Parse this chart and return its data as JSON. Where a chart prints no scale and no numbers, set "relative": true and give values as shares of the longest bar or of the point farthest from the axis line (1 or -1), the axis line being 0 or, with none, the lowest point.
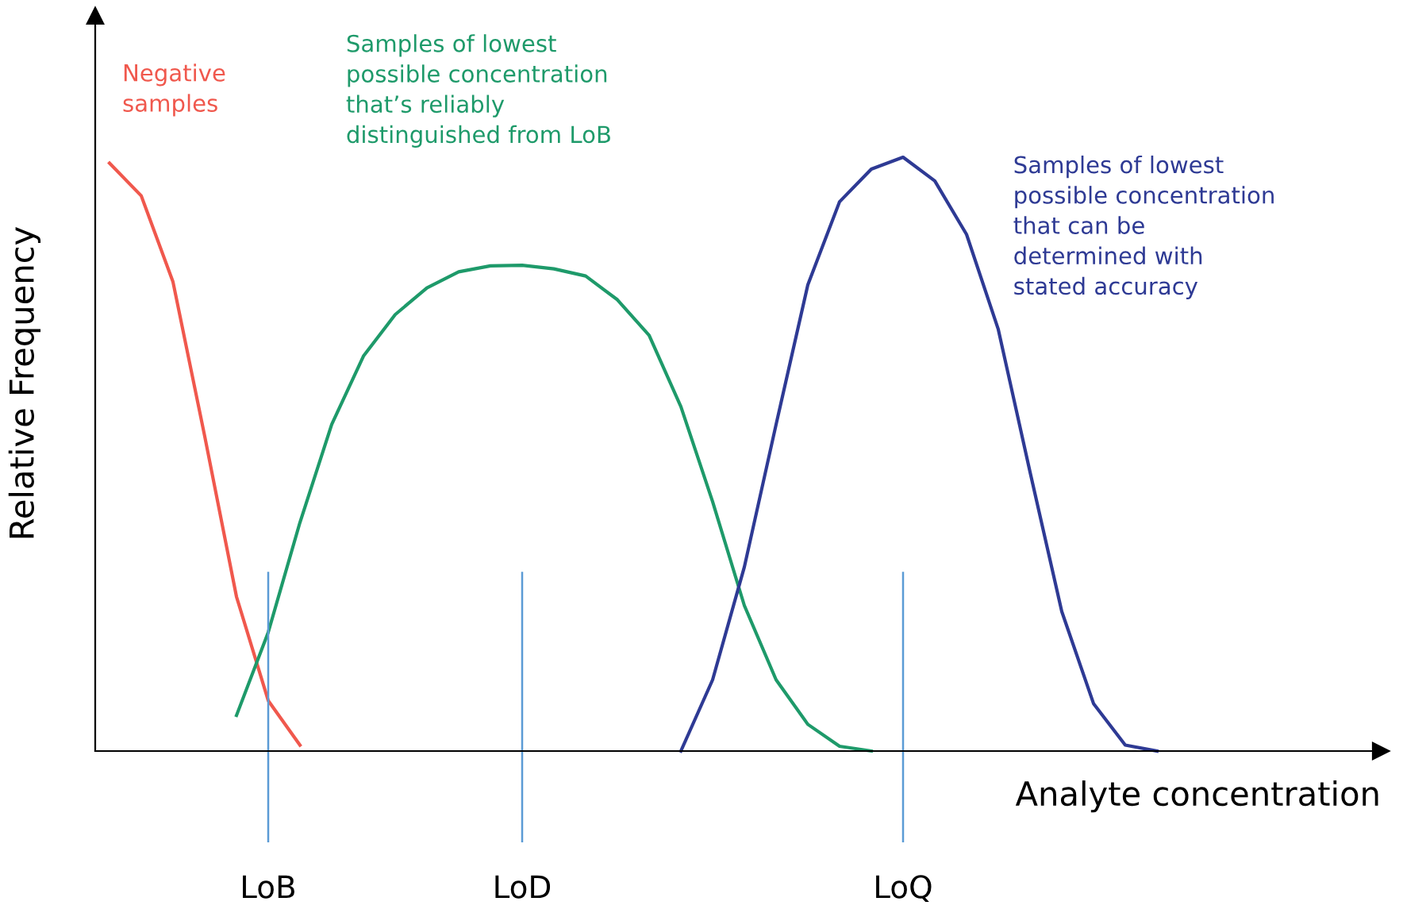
{
  "chart_data": {
    "type": "line",
    "relative": true,
    "xlabel": "Analyte concentration",
    "ylabel": "Relative Frequency",
    "categories": [
      null,
      null,
      null,
      null,
      null,
      "LoB",
      null,
      null,
      null,
      null,
      null,
      null,
      null,
      "LoD",
      null,
      null,
      null,
      null,
      null,
      null,
      null,
      null,
      null,
      null,
      null,
      "LoQ",
      null,
      null,
      null,
      null,
      null,
      null,
      null,
      null,
      null,
      null,
      null,
      null,
      null,
      null
    ],
    "tick_labels": "x",
    "grid": false,
    "legend": false,
    "marker": "none",
    "line_style": "solid",
    "ref_lines": [
      {
        "axis": "x",
        "value": "LoB",
        "color": "#5b9bd5"
      },
      {
        "axis": "x",
        "value": "LoD",
        "color": "#5b9bd5"
      },
      {
        "axis": "x",
        "value": "LoQ",
        "color": "#5b9bd5"
      }
    ],
    "series": [
      {
        "name": "Negative\nsamples",
        "color": "#f0584d",
        "values": [
          0.99,
          0.935,
          0.79,
          0.53,
          0.26,
          0.085,
          0.01,
          null,
          null,
          null,
          null,
          null,
          null,
          null,
          null,
          null,
          null,
          null,
          null,
          null,
          null,
          null,
          null,
          null,
          null,
          null,
          null,
          null,
          null,
          null,
          null,
          null,
          null,
          null,
          null,
          null,
          null,
          null,
          null,
          null
        ]
      },
      {
        "name": "Samples of lowest\npossible concentration\nthat’s reliably\ndistinguished from LoB",
        "color": "#1e9a6a",
        "values": [
          null,
          null,
          null,
          null,
          0.06,
          0.2,
          0.385,
          0.55,
          0.665,
          0.735,
          0.78,
          0.807,
          0.817,
          0.818,
          0.812,
          0.8,
          0.76,
          0.7,
          0.58,
          0.42,
          0.245,
          0.12,
          0.045,
          0.008,
          0,
          null,
          null,
          null,
          null,
          null,
          null,
          null,
          null,
          null,
          null,
          null,
          null,
          null,
          null,
          null
        ]
      },
      {
        "name": "Samples of lowest\npossible concentration\nthat can be\ndetermined with\nstated accuracy",
        "color": "#2e3a94",
        "values": [
          null,
          null,
          null,
          null,
          null,
          null,
          null,
          null,
          null,
          null,
          null,
          null,
          null,
          null,
          null,
          null,
          null,
          null,
          0,
          0.12,
          0.31,
          0.55,
          0.785,
          0.925,
          0.98,
          1.0,
          0.96,
          0.87,
          0.71,
          0.47,
          0.235,
          0.08,
          0.01,
          0,
          null,
          null,
          null,
          null,
          null,
          null
        ]
      }
    ]
  }
}
